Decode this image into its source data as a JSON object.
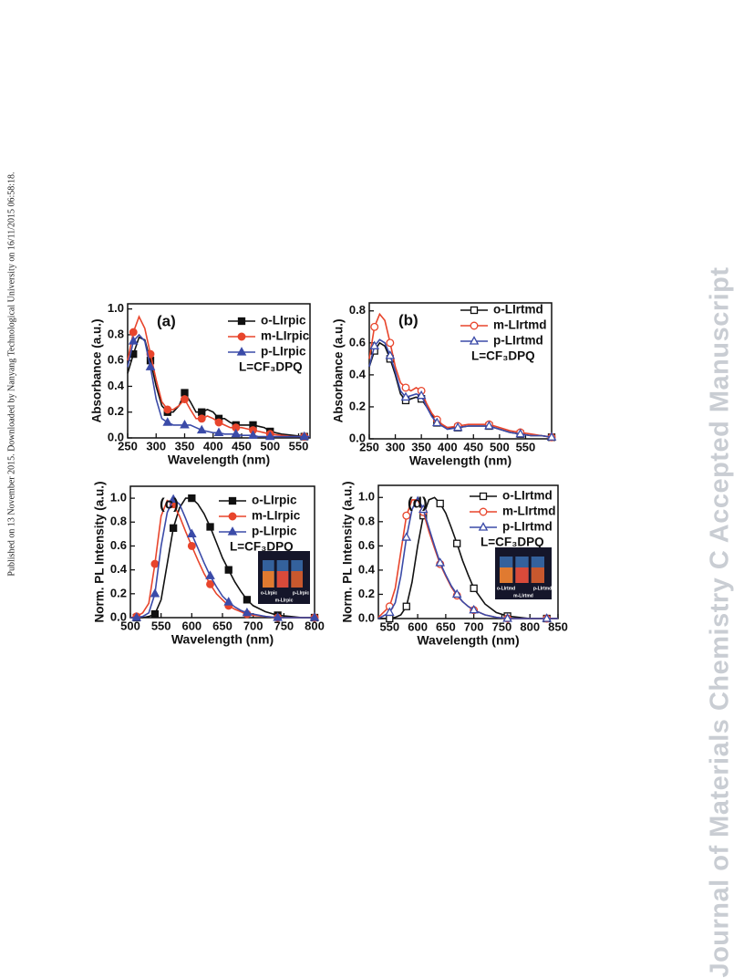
{
  "side_note": "Published on 13 November 2015. Downloaded by Nanyang Technological University on 16/11/2015 06:58:18.",
  "watermark": "Journal of Materials Chemistry C Accepted Manuscript",
  "chart_data": [
    {
      "type": "line",
      "panel": "(a)",
      "x_label": "Wavelength (nm)",
      "y_label": "Absorbance (a.u.)",
      "annotation": "L=CF₃DPQ",
      "marker_fill": "filled",
      "xlim": [
        250,
        570
      ],
      "xticks": [
        250,
        300,
        350,
        400,
        450,
        500,
        550
      ],
      "ylim": [
        0,
        1.04
      ],
      "yticks": [
        {
          "value": 0,
          "label": "0.0"
        },
        {
          "value": 0.2,
          "label": "0.2"
        },
        {
          "value": 0.4,
          "label": "0.4"
        },
        {
          "value": 0.6,
          "label": "0.6"
        },
        {
          "value": 0.8,
          "label": "0.8"
        },
        {
          "value": 1.0,
          "label": "1.0"
        }
      ],
      "x": [
        250,
        260,
        270,
        280,
        290,
        300,
        310,
        320,
        330,
        340,
        350,
        360,
        370,
        380,
        390,
        400,
        410,
        420,
        430,
        440,
        450,
        460,
        470,
        480,
        490,
        500,
        520,
        540,
        560,
        570
      ],
      "series": [
        {
          "name": "o-LIrpic",
          "color": "#111111",
          "marker": "square",
          "values": [
            0.5,
            0.65,
            0.78,
            0.76,
            0.6,
            0.4,
            0.25,
            0.2,
            0.2,
            0.25,
            0.35,
            0.28,
            0.2,
            0.2,
            0.22,
            0.2,
            0.15,
            0.15,
            0.12,
            0.1,
            0.1,
            0.1,
            0.1,
            0.09,
            0.08,
            0.05,
            0.03,
            0.02,
            0.01,
            0.01
          ]
        },
        {
          "name": "m-LIrpic",
          "color": "#e8452c",
          "marker": "circle",
          "values": [
            0.6,
            0.82,
            0.94,
            0.85,
            0.65,
            0.45,
            0.28,
            0.22,
            0.22,
            0.25,
            0.3,
            0.22,
            0.15,
            0.15,
            0.17,
            0.15,
            0.12,
            0.1,
            0.08,
            0.08,
            0.08,
            0.07,
            0.06,
            0.05,
            0.04,
            0.03,
            0.02,
            0.01,
            0.01,
            0.01
          ]
        },
        {
          "name": "p-LIrpic",
          "color": "#3b4ba8",
          "marker": "triangle",
          "values": [
            0.55,
            0.75,
            0.8,
            0.75,
            0.55,
            0.3,
            0.15,
            0.12,
            0.1,
            0.1,
            0.1,
            0.1,
            0.08,
            0.06,
            0.05,
            0.04,
            0.04,
            0.03,
            0.03,
            0.03,
            0.02,
            0.02,
            0.02,
            0.01,
            0.01,
            0.01,
            0.01,
            0.01,
            0.01,
            0.01
          ]
        }
      ]
    },
    {
      "type": "line",
      "panel": "(b)",
      "x_label": "Wavelength (nm)",
      "y_label": "Absorbance (a.u.)",
      "annotation": "L=CF₃DPQ",
      "marker_fill": "open",
      "xlim": [
        250,
        600
      ],
      "xticks": [
        250,
        300,
        350,
        400,
        450,
        500,
        550
      ],
      "ylim": [
        0,
        0.85
      ],
      "yticks": [
        {
          "value": 0,
          "label": "0.0"
        },
        {
          "value": 0.2,
          "label": "0.2"
        },
        {
          "value": 0.4,
          "label": "0.4"
        },
        {
          "value": 0.6,
          "label": "0.6"
        },
        {
          "value": 0.8,
          "label": "0.8"
        }
      ],
      "x": [
        250,
        260,
        270,
        280,
        290,
        300,
        310,
        320,
        330,
        340,
        350,
        360,
        370,
        380,
        390,
        400,
        420,
        440,
        460,
        480,
        500,
        520,
        540,
        560,
        580,
        600
      ],
      "series": [
        {
          "name": "o-LIrtmd",
          "color": "#111111",
          "marker": "square",
          "values": [
            0.45,
            0.55,
            0.6,
            0.58,
            0.5,
            0.4,
            0.28,
            0.24,
            0.25,
            0.26,
            0.25,
            0.2,
            0.15,
            0.1,
            0.08,
            0.07,
            0.07,
            0.08,
            0.08,
            0.08,
            0.06,
            0.04,
            0.03,
            0.02,
            0.02,
            0.01
          ]
        },
        {
          "name": "m-LIrtmd",
          "color": "#e8452c",
          "marker": "circle",
          "values": [
            0.5,
            0.7,
            0.78,
            0.74,
            0.6,
            0.45,
            0.35,
            0.32,
            0.3,
            0.32,
            0.3,
            0.22,
            0.16,
            0.12,
            0.09,
            0.07,
            0.08,
            0.09,
            0.09,
            0.09,
            0.07,
            0.05,
            0.04,
            0.03,
            0.02,
            0.01
          ]
        },
        {
          "name": "p-LIrtmd",
          "color": "#3b4ba8",
          "marker": "triangle",
          "values": [
            0.45,
            0.58,
            0.62,
            0.6,
            0.52,
            0.42,
            0.3,
            0.26,
            0.27,
            0.28,
            0.27,
            0.2,
            0.14,
            0.1,
            0.08,
            0.06,
            0.07,
            0.08,
            0.08,
            0.08,
            0.06,
            0.04,
            0.03,
            0.02,
            0.02,
            0.01
          ]
        }
      ]
    },
    {
      "type": "line",
      "panel": "(c)",
      "x_label": "Wavelength (nm)",
      "y_label": "Norm. PL Intensity (a.u.)",
      "annotation": "L=CF₃DPQ",
      "marker_fill": "filled",
      "inset_labels": [
        "o-LIrpic",
        "p-LIrpic",
        "m-LIrpic"
      ],
      "xlim": [
        500,
        800
      ],
      "xticks": [
        500,
        550,
        600,
        650,
        700,
        750,
        800
      ],
      "ylim": [
        0,
        1.1
      ],
      "yticks": [
        {
          "value": 0,
          "label": "0.0"
        },
        {
          "value": 0.2,
          "label": "0.2"
        },
        {
          "value": 0.4,
          "label": "0.4"
        },
        {
          "value": 0.6,
          "label": "0.6"
        },
        {
          "value": 0.8,
          "label": "0.8"
        },
        {
          "value": 1.0,
          "label": "1.0"
        }
      ],
      "x": [
        500,
        510,
        520,
        530,
        540,
        550,
        560,
        570,
        580,
        590,
        600,
        610,
        620,
        630,
        640,
        650,
        660,
        670,
        680,
        690,
        700,
        720,
        740,
        760,
        780,
        800
      ],
      "series": [
        {
          "name": "o-LIrpic",
          "color": "#111111",
          "marker": "square",
          "values": [
            0,
            0,
            0,
            0.01,
            0.03,
            0.15,
            0.45,
            0.75,
            0.92,
            1.0,
            1.0,
            0.95,
            0.87,
            0.76,
            0.63,
            0.5,
            0.4,
            0.3,
            0.22,
            0.15,
            0.1,
            0.05,
            0.02,
            0.01,
            0,
            0
          ]
        },
        {
          "name": "m-LIrpic",
          "color": "#e8452c",
          "marker": "circle",
          "values": [
            0,
            0.01,
            0.04,
            0.12,
            0.45,
            0.85,
            0.98,
            0.95,
            0.85,
            0.72,
            0.6,
            0.48,
            0.37,
            0.28,
            0.2,
            0.15,
            0.1,
            0.07,
            0.05,
            0.03,
            0.02,
            0.01,
            0,
            0,
            0,
            0
          ]
        },
        {
          "name": "p-LIrpic",
          "color": "#3b4ba8",
          "marker": "triangle",
          "values": [
            0,
            0,
            0.01,
            0.04,
            0.2,
            0.6,
            0.88,
            0.99,
            0.95,
            0.83,
            0.7,
            0.58,
            0.46,
            0.35,
            0.26,
            0.18,
            0.13,
            0.09,
            0.06,
            0.04,
            0.03,
            0.01,
            0,
            0,
            0,
            0
          ]
        }
      ]
    },
    {
      "type": "line",
      "panel": "(d)",
      "x_label": "Wavelength (nm)",
      "y_label": "Norm. PL Intensity (a.u.)",
      "annotation": "L=CF₃DPQ",
      "marker_fill": "open",
      "inset_labels": [
        "o-LIrtmd",
        "p-LIrtmd",
        "m-LIrtmd"
      ],
      "xlim": [
        530,
        850
      ],
      "xticks": [
        550,
        600,
        650,
        700,
        750,
        800,
        850
      ],
      "ylim": [
        0,
        1.1
      ],
      "yticks": [
        {
          "value": 0,
          "label": "0.0"
        },
        {
          "value": 0.2,
          "label": "0.2"
        },
        {
          "value": 0.4,
          "label": "0.4"
        },
        {
          "value": 0.6,
          "label": "0.6"
        },
        {
          "value": 0.8,
          "label": "0.8"
        },
        {
          "value": 1.0,
          "label": "1.0"
        }
      ],
      "x": [
        530,
        550,
        560,
        570,
        580,
        590,
        600,
        610,
        620,
        630,
        640,
        650,
        660,
        670,
        680,
        690,
        700,
        720,
        740,
        760,
        780,
        800,
        830,
        850
      ],
      "series": [
        {
          "name": "o-LIrtmd",
          "color": "#111111",
          "marker": "square",
          "values": [
            0,
            0,
            0.01,
            0.03,
            0.1,
            0.3,
            0.6,
            0.85,
            0.98,
            1.0,
            0.95,
            0.87,
            0.75,
            0.62,
            0.48,
            0.36,
            0.25,
            0.12,
            0.05,
            0.02,
            0.01,
            0,
            0,
            0
          ]
        },
        {
          "name": "m-LIrtmd",
          "color": "#e8452c",
          "marker": "circle",
          "values": [
            0.01,
            0.1,
            0.25,
            0.55,
            0.85,
            0.98,
            0.98,
            0.88,
            0.72,
            0.58,
            0.45,
            0.35,
            0.26,
            0.19,
            0.14,
            0.1,
            0.07,
            0.03,
            0.01,
            0,
            0,
            0,
            0,
            0
          ]
        },
        {
          "name": "p-LIrtmd",
          "color": "#3b4ba8",
          "marker": "triangle",
          "values": [
            0,
            0.05,
            0.13,
            0.35,
            0.67,
            0.9,
            1.0,
            0.9,
            0.75,
            0.6,
            0.46,
            0.36,
            0.27,
            0.2,
            0.14,
            0.1,
            0.07,
            0.03,
            0.01,
            0,
            0,
            0,
            0,
            0
          ]
        }
      ]
    }
  ]
}
